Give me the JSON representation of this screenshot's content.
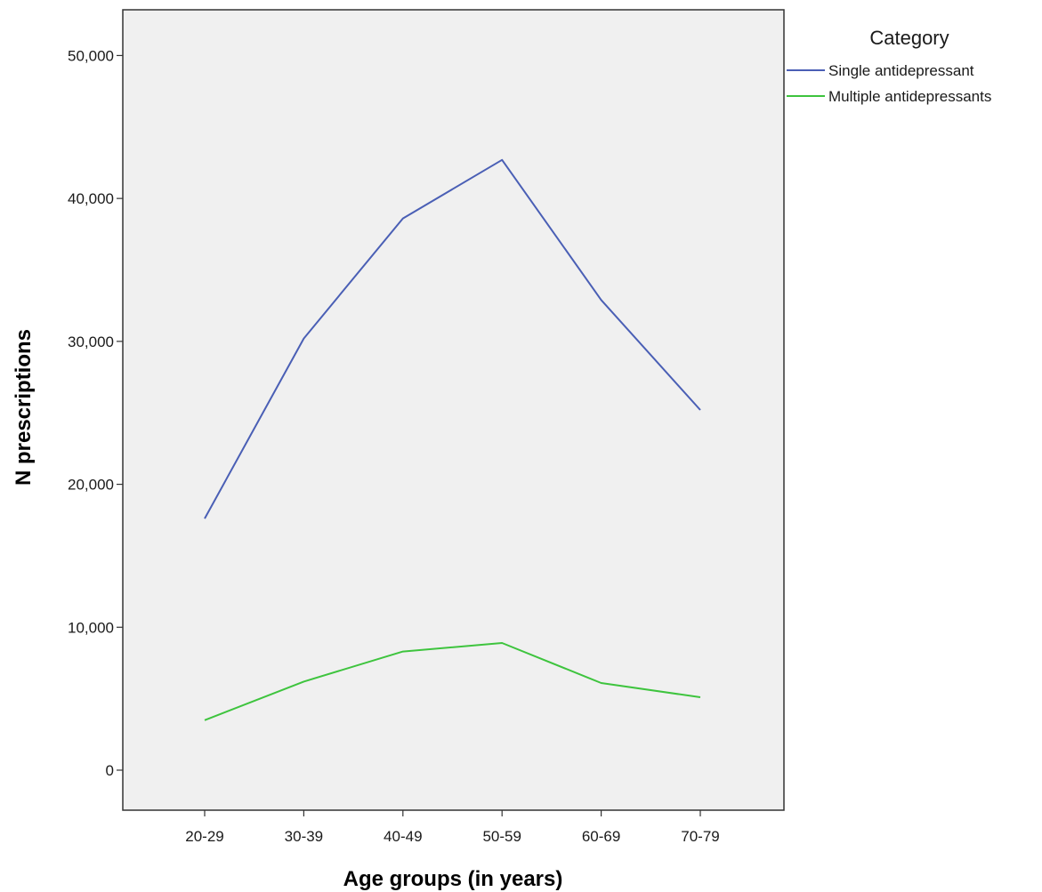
{
  "chart_data": {
    "type": "line",
    "xlabel": "Age groups (in years)",
    "ylabel": "N prescriptions",
    "categories": [
      "20-29",
      "30-39",
      "40-49",
      "50-59",
      "60-69",
      "70-79"
    ],
    "y_ticks": [
      0,
      10000,
      20000,
      30000,
      40000,
      50000
    ],
    "y_tick_labels": [
      "0",
      "10,000",
      "20,000",
      "30,000",
      "40,000",
      "50,000"
    ],
    "ylim": [
      -2800,
      53200
    ],
    "grid": false,
    "legend": {
      "title": "Category",
      "position": "right-outside-top"
    },
    "series": [
      {
        "name": "Single antidepressant",
        "color": "#4a5fb5",
        "values": [
          17600,
          30200,
          38600,
          42700,
          32900,
          25200
        ]
      },
      {
        "name": "Multiple antidepressants",
        "color": "#3ec43e",
        "values": [
          3500,
          6200,
          8300,
          8900,
          6100,
          5100
        ]
      }
    ]
  }
}
